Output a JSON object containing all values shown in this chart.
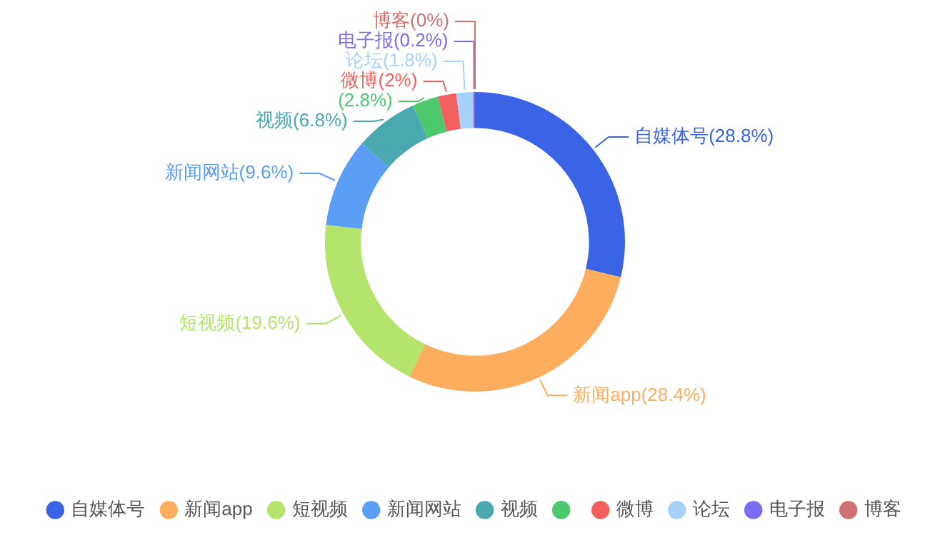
{
  "chart_data": {
    "type": "donut",
    "categories": [
      "自媒体号",
      "新闻app",
      "短视频",
      "新闻网站",
      "视频",
      null,
      "微博",
      "论坛",
      "电子报",
      "博客"
    ],
    "values": [
      28.8,
      28.4,
      19.6,
      9.6,
      6.8,
      2.8,
      2,
      1.8,
      0.2,
      0
    ],
    "colors": [
      "#3b63e6",
      "#fcad5e",
      "#b5e46d",
      "#5b9ef5",
      "#4aa8b1",
      "#4cc96c",
      "#f25f5c",
      "#a6d1f9",
      "#7c6cf2",
      "#d07070"
    ],
    "value_labels": [
      "自媒体号(28.8%)",
      "新闻app(28.4%)",
      "短视频(19.6%)",
      "新闻网站(9.6%)",
      "视频(6.8%)",
      "(2.8%)",
      "微博(2%)",
      "论坛(1.8%)",
      "电子报(0.2%)",
      "博客(0%)"
    ],
    "legend": "bottom"
  }
}
